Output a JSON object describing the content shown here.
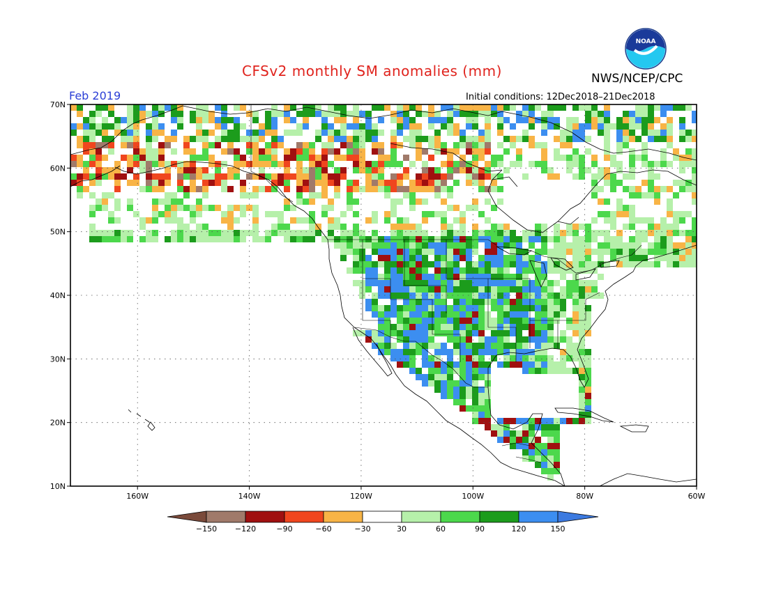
{
  "title": "CFSv2 monthly SM anomalies (mm)",
  "agency": "NWS/NCEP/CPC",
  "logo_text": "NOAA",
  "valid_month": "Feb 2019",
  "initial_conditions": "Initial conditions: 12Dec2018–21Dec2018",
  "map": {
    "lon_range": [
      -172,
      -60
    ],
    "lat_range": [
      10,
      70
    ],
    "lon_ticks": [
      "160W",
      "140W",
      "120W",
      "100W",
      "80W",
      "60W"
    ],
    "lat_ticks": [
      "10N",
      "20N",
      "30N",
      "40N",
      "50N",
      "60N",
      "70N"
    ]
  },
  "colorbar": {
    "labels": [
      "−150",
      "−120",
      "−90",
      "−60",
      "−30",
      "30",
      "60",
      "90",
      "120",
      "150"
    ],
    "colors": [
      "#7a4a3a",
      "#a07a6a",
      "#a01010",
      "#f0461e",
      "#f8b446",
      "#ffffff",
      "#b6f0aa",
      "#4cd84c",
      "#1c9c1c",
      "#3c8ef0",
      "#3c7ae0"
    ]
  }
}
